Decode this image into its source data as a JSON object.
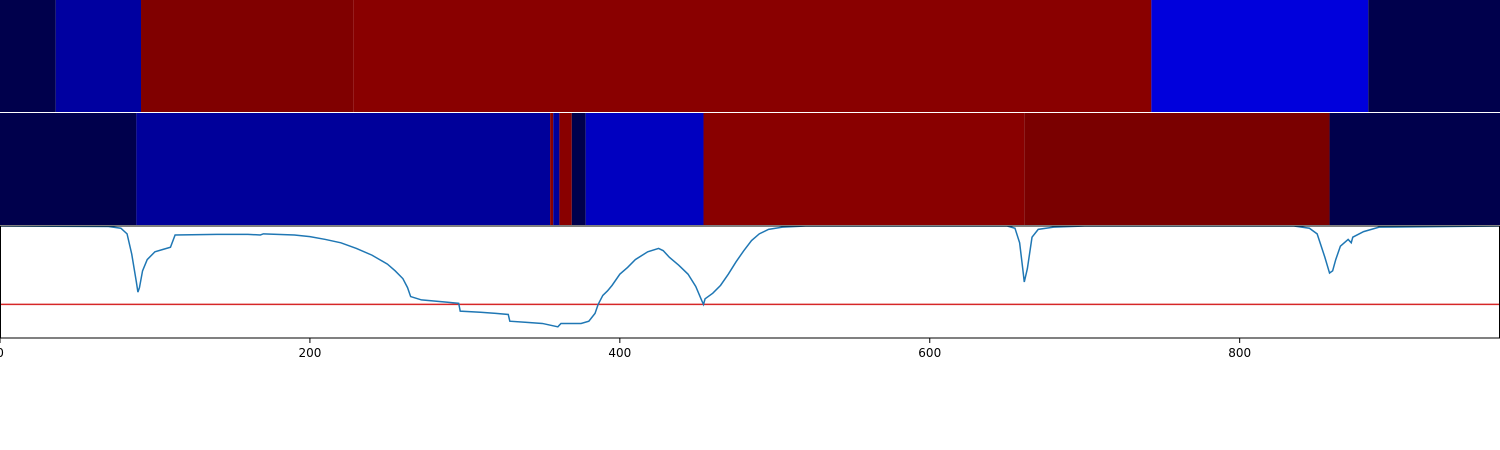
{
  "chart_data": {
    "type": "heatmap",
    "x_axis": {
      "xlim": [
        0,
        968
      ],
      "ticks": [
        0,
        200,
        400,
        600,
        800
      ],
      "tick_labels": [
        "0",
        "200",
        "400",
        "600",
        "800"
      ]
    },
    "segment_rows": [
      {
        "name": "",
        "segments": [
          {
            "start": 0,
            "end": 36,
            "color": "#00004c"
          },
          {
            "start": 36,
            "end": 91,
            "color": "#0000a0"
          },
          {
            "start": 91,
            "end": 228,
            "color": "#800000"
          },
          {
            "start": 228,
            "end": 743,
            "color": "#890000"
          },
          {
            "start": 743,
            "end": 883,
            "color": "#0000dc"
          },
          {
            "start": 883,
            "end": 968,
            "color": "#00004c"
          }
        ]
      },
      {
        "name": "",
        "segments": [
          {
            "start": 0,
            "end": 88,
            "color": "#00004c"
          },
          {
            "start": 88,
            "end": 355,
            "color": "#00009a"
          },
          {
            "start": 355,
            "end": 357,
            "color": "#890000"
          },
          {
            "start": 357,
            "end": 361,
            "color": "#00009a"
          },
          {
            "start": 361,
            "end": 369,
            "color": "#890000"
          },
          {
            "start": 369,
            "end": 378,
            "color": "#00004c"
          },
          {
            "start": 378,
            "end": 454,
            "color": "#0000c0"
          },
          {
            "start": 454,
            "end": 661,
            "color": "#890000"
          },
          {
            "start": 661,
            "end": 858,
            "color": "#7a0000"
          },
          {
            "start": 858,
            "end": 968,
            "color": "#00004c"
          }
        ]
      }
    ],
    "line": {
      "color": "#1f77b4",
      "ylim": [
        0,
        1
      ],
      "points": [
        [
          0,
          1.0
        ],
        [
          70,
          0.995
        ],
        [
          78,
          0.98
        ],
        [
          82,
          0.93
        ],
        [
          85,
          0.75
        ],
        [
          88,
          0.5
        ],
        [
          89,
          0.41
        ],
        [
          90,
          0.45
        ],
        [
          92,
          0.6
        ],
        [
          95,
          0.7
        ],
        [
          100,
          0.77
        ],
        [
          105,
          0.79
        ],
        [
          110,
          0.81
        ],
        [
          113,
          0.92
        ],
        [
          140,
          0.925
        ],
        [
          160,
          0.925
        ],
        [
          168,
          0.92
        ],
        [
          170,
          0.93
        ],
        [
          190,
          0.92
        ],
        [
          200,
          0.905
        ],
        [
          210,
          0.88
        ],
        [
          220,
          0.85
        ],
        [
          230,
          0.8
        ],
        [
          240,
          0.74
        ],
        [
          245,
          0.7
        ],
        [
          250,
          0.66
        ],
        [
          255,
          0.6
        ],
        [
          260,
          0.53
        ],
        [
          263,
          0.45
        ],
        [
          265,
          0.37
        ],
        [
          272,
          0.34
        ],
        [
          280,
          0.33
        ],
        [
          288,
          0.32
        ],
        [
          296,
          0.31
        ],
        [
          297,
          0.24
        ],
        [
          310,
          0.23
        ],
        [
          320,
          0.22
        ],
        [
          328,
          0.21
        ],
        [
          329,
          0.15
        ],
        [
          340,
          0.14
        ],
        [
          350,
          0.13
        ],
        [
          360,
          0.1
        ],
        [
          362,
          0.13
        ],
        [
          375,
          0.13
        ],
        [
          380,
          0.15
        ],
        [
          384,
          0.22
        ],
        [
          386,
          0.3
        ],
        [
          389,
          0.38
        ],
        [
          392,
          0.42
        ],
        [
          395,
          0.47
        ],
        [
          400,
          0.57
        ],
        [
          405,
          0.63
        ],
        [
          410,
          0.7
        ],
        [
          418,
          0.77
        ],
        [
          425,
          0.8
        ],
        [
          428,
          0.78
        ],
        [
          432,
          0.72
        ],
        [
          438,
          0.65
        ],
        [
          444,
          0.57
        ],
        [
          449,
          0.46
        ],
        [
          453,
          0.33
        ],
        [
          454,
          0.3
        ],
        [
          455,
          0.35
        ],
        [
          460,
          0.4
        ],
        [
          465,
          0.47
        ],
        [
          470,
          0.57
        ],
        [
          475,
          0.68
        ],
        [
          480,
          0.78
        ],
        [
          485,
          0.87
        ],
        [
          490,
          0.93
        ],
        [
          496,
          0.97
        ],
        [
          505,
          0.99
        ],
        [
          520,
          1.0
        ],
        [
          650,
          1.0
        ],
        [
          655,
          0.98
        ],
        [
          658,
          0.85
        ],
        [
          660,
          0.62
        ],
        [
          661,
          0.5
        ],
        [
          663,
          0.62
        ],
        [
          666,
          0.9
        ],
        [
          670,
          0.97
        ],
        [
          680,
          0.99
        ],
        [
          700,
          1.0
        ],
        [
          835,
          1.0
        ],
        [
          845,
          0.98
        ],
        [
          850,
          0.93
        ],
        [
          855,
          0.72
        ],
        [
          858,
          0.58
        ],
        [
          860,
          0.6
        ],
        [
          862,
          0.7
        ],
        [
          865,
          0.82
        ],
        [
          870,
          0.88
        ],
        [
          872,
          0.85
        ],
        [
          873,
          0.9
        ],
        [
          880,
          0.95
        ],
        [
          890,
          0.99
        ],
        [
          968,
          1.0
        ]
      ]
    },
    "threshold": {
      "value": 0.3,
      "color": "#d62728"
    }
  }
}
